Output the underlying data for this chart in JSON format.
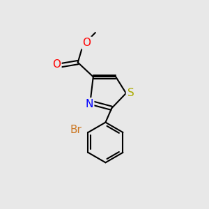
{
  "background_color": "#e8e8e8",
  "bond_color": "#000000",
  "bond_width": 1.5,
  "atom_colors": {
    "O": "#ff0000",
    "N": "#0000ff",
    "S": "#aaaa00",
    "Br": "#cc7722",
    "C": "#000000"
  },
  "font_size_atom": 11,
  "font_size_methyl": 10,
  "figsize": [
    3.0,
    3.0
  ],
  "dpi": 100
}
